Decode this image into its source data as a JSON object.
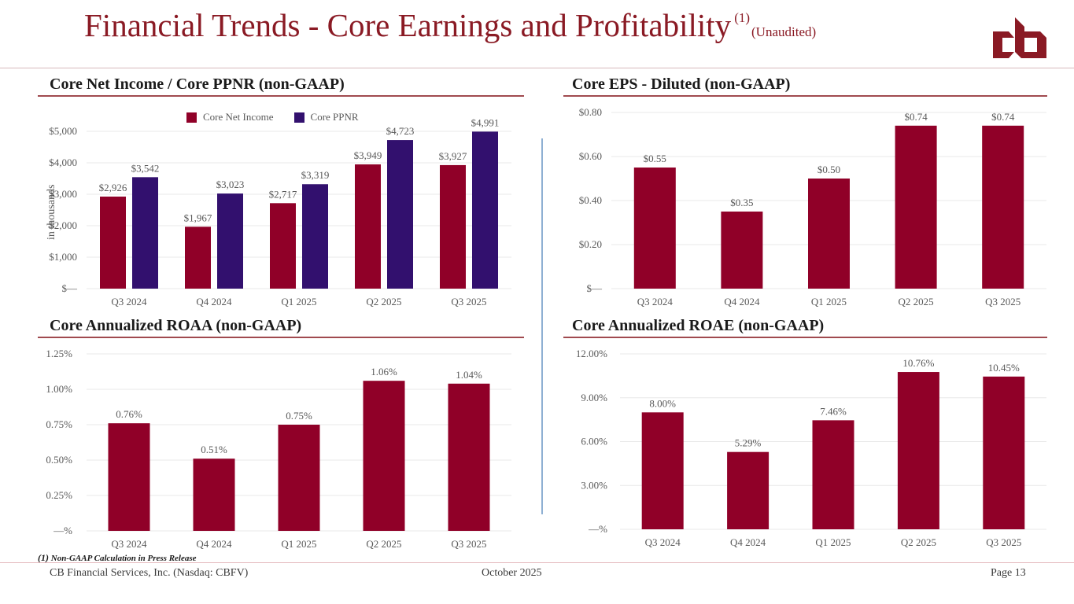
{
  "header": {
    "title": "Financial Trends - Core Earnings and Profitability",
    "footnote_ref": "(1)",
    "qualifier": "(Unaudited)",
    "logo": "cb-logo-icon"
  },
  "colors": {
    "brand": "#8a1a24",
    "bar_primary": "#900028",
    "bar_secondary": "#32106e",
    "gridline": "#e8e8e8",
    "divider": "#8fb0d3"
  },
  "sections": {
    "net_income": "Core Net Income / Core PPNR (non-GAAP)",
    "eps": "Core EPS - Diluted (non-GAAP)",
    "roaa": "Core Annualized ROAA (non-GAAP)",
    "roae": "Core Annualized ROAE (non-GAAP)"
  },
  "chart_data": [
    {
      "id": "net_income",
      "type": "bar",
      "title": "Core Net Income / Core PPNR (non-GAAP)",
      "xlabel": "",
      "ylabel": "in thousands",
      "categories": [
        "Q3 2024",
        "Q4 2024",
        "Q1 2025",
        "Q2 2025",
        "Q3 2025"
      ],
      "series": [
        {
          "name": "Core Net Income",
          "values": [
            2926,
            1967,
            2717,
            3949,
            3927
          ],
          "labels": [
            "$2,926",
            "$1,967",
            "$2,717",
            "$3,949",
            "$3,927"
          ]
        },
        {
          "name": "Core PPNR",
          "values": [
            3542,
            3023,
            3319,
            4723,
            4991
          ],
          "labels": [
            "$3,542",
            "$3,023",
            "$3,319",
            "$4,723",
            "$4,991"
          ]
        }
      ],
      "ylim": [
        0,
        5000
      ],
      "yticks": [
        0,
        1000,
        2000,
        3000,
        4000,
        5000
      ],
      "ytick_labels": [
        "$—",
        "$1,000",
        "$2,000",
        "$3,000",
        "$4,000",
        "$5,000"
      ],
      "legend": "top-center",
      "grid": true
    },
    {
      "id": "eps",
      "type": "bar",
      "title": "Core EPS - Diluted (non-GAAP)",
      "xlabel": "",
      "ylabel": "",
      "categories": [
        "Q3 2024",
        "Q4 2024",
        "Q1 2025",
        "Q2 2025",
        "Q3 2025"
      ],
      "series": [
        {
          "name": "Core EPS - Diluted",
          "values": [
            0.55,
            0.35,
            0.5,
            0.74,
            0.74
          ],
          "labels": [
            "$0.55",
            "$0.35",
            "$0.50",
            "$0.74",
            "$0.74"
          ]
        }
      ],
      "ylim": [
        0,
        0.8
      ],
      "yticks": [
        0,
        0.2,
        0.4,
        0.6,
        0.8
      ],
      "ytick_labels": [
        "$—",
        "$0.20",
        "$0.40",
        "$0.60",
        "$0.80"
      ],
      "grid": true
    },
    {
      "id": "roaa",
      "type": "bar",
      "title": "Core Annualized ROAA (non-GAAP)",
      "xlabel": "",
      "ylabel": "",
      "categories": [
        "Q3 2024",
        "Q4 2024",
        "Q1 2025",
        "Q2 2025",
        "Q3 2025"
      ],
      "series": [
        {
          "name": "Core Annualized ROAA",
          "values": [
            0.76,
            0.51,
            0.75,
            1.06,
            1.04
          ],
          "labels": [
            "0.76%",
            "0.51%",
            "0.75%",
            "1.06%",
            "1.04%"
          ]
        }
      ],
      "ylim": [
        0,
        1.25
      ],
      "yticks": [
        0,
        0.25,
        0.5,
        0.75,
        1.0,
        1.25
      ],
      "ytick_labels": [
        "—%",
        "0.25%",
        "0.50%",
        "0.75%",
        "1.00%",
        "1.25%"
      ],
      "grid": true
    },
    {
      "id": "roae",
      "type": "bar",
      "title": "Core Annualized ROAE (non-GAAP)",
      "xlabel": "",
      "ylabel": "",
      "categories": [
        "Q3 2024",
        "Q4 2024",
        "Q1 2025",
        "Q2 2025",
        "Q3 2025"
      ],
      "series": [
        {
          "name": "Core Annualized ROAE",
          "values": [
            8.0,
            5.29,
            7.46,
            10.76,
            10.45
          ],
          "labels": [
            "8.00%",
            "5.29%",
            "7.46%",
            "10.76%",
            "10.45%"
          ]
        }
      ],
      "ylim": [
        0,
        12
      ],
      "yticks": [
        0,
        3,
        6,
        9,
        12
      ],
      "ytick_labels": [
        "—%",
        "3.00%",
        "6.00%",
        "9.00%",
        "12.00%"
      ],
      "grid": true
    }
  ],
  "footnote": {
    "num": "(1)",
    "text": "Non-GAAP Calculation in Press Release"
  },
  "footer": {
    "company": "CB Financial Services, Inc. (Nasdaq: CBFV)",
    "date": "October 2025",
    "page": "Page 13"
  }
}
